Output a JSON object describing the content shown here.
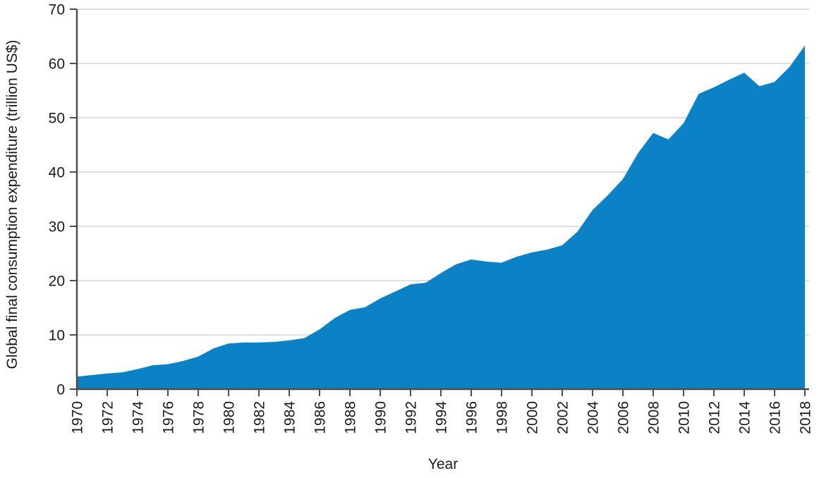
{
  "chart_data": {
    "type": "area",
    "title": "",
    "xlabel": "Year",
    "ylabel": "Global final consumption expenditure (trillion US$)",
    "x": [
      1970,
      1971,
      1972,
      1973,
      1974,
      1975,
      1976,
      1977,
      1978,
      1979,
      1980,
      1981,
      1982,
      1983,
      1984,
      1985,
      1986,
      1987,
      1988,
      1989,
      1990,
      1991,
      1992,
      1993,
      1994,
      1995,
      1996,
      1997,
      1998,
      1999,
      2000,
      2001,
      2002,
      2003,
      2004,
      2005,
      2006,
      2007,
      2008,
      2009,
      2010,
      2011,
      2012,
      2013,
      2014,
      2015,
      2016,
      2017,
      2018
    ],
    "values": [
      2.3,
      2.6,
      2.9,
      3.1,
      3.7,
      4.4,
      4.6,
      5.2,
      6.0,
      7.5,
      8.4,
      8.6,
      8.6,
      8.7,
      9.0,
      9.4,
      11.0,
      13.1,
      14.6,
      15.1,
      16.7,
      18.0,
      19.3,
      19.6,
      21.4,
      23.0,
      23.9,
      23.5,
      23.3,
      24.4,
      25.2,
      25.7,
      26.5,
      29.0,
      33.0,
      35.7,
      38.7,
      43.5,
      47.2,
      46.0,
      49.0,
      54.4,
      55.6,
      57.0,
      58.3,
      55.8,
      56.6,
      59.4,
      63.3
    ],
    "xlim": [
      1970,
      2018
    ],
    "ylim": [
      0,
      70
    ],
    "yticks": [
      0,
      10,
      20,
      30,
      40,
      50,
      60,
      70
    ],
    "xticks": [
      1970,
      1972,
      1974,
      1976,
      1978,
      1980,
      1982,
      1984,
      1986,
      1988,
      1990,
      1992,
      1994,
      1996,
      1998,
      2000,
      2002,
      2004,
      2006,
      2008,
      2010,
      2012,
      2014,
      2016,
      2018
    ],
    "grid": "horizontal",
    "legend": "none",
    "colors": {
      "area": "#0b81c6",
      "axis": "#4d4d4d",
      "gridline": "#c9c9c9",
      "text": "#1a1a1a"
    }
  }
}
